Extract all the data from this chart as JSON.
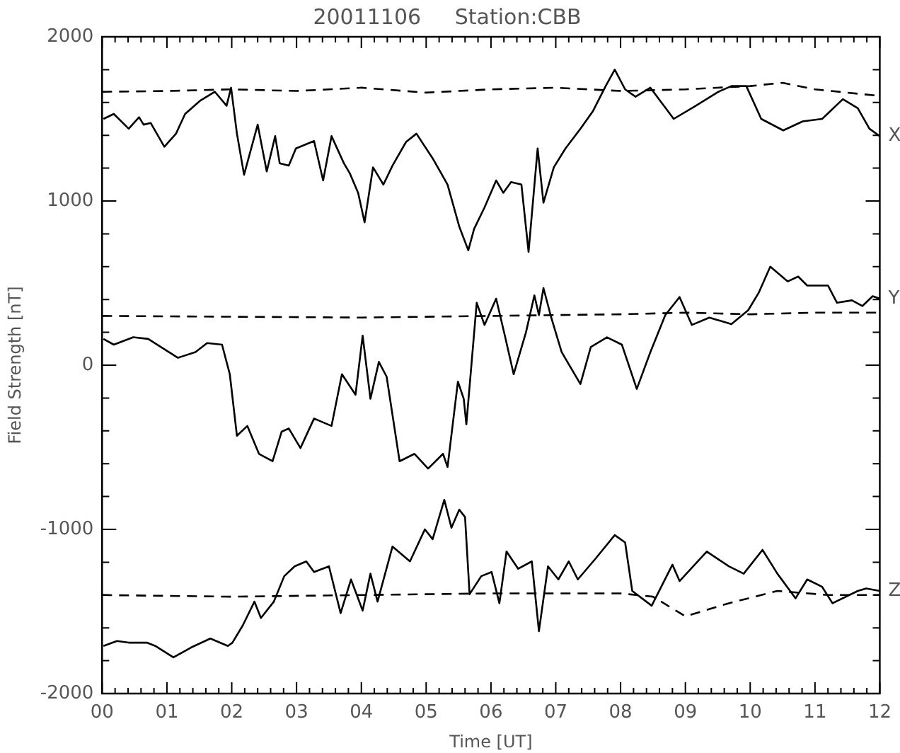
{
  "chart_data": {
    "type": "line",
    "title": "20011106     Station:CBB",
    "xlabel": "Time [UT]",
    "ylabel": "Field Strength [nT]",
    "xlim": [
      0,
      12
    ],
    "ylim": [
      -2000,
      2000
    ],
    "xticks": [
      {
        "value": 0,
        "label": "00"
      },
      {
        "value": 0.2,
        "label": null
      },
      {
        "value": 0.4,
        "label": null
      },
      {
        "value": 0.6,
        "label": null
      },
      {
        "value": 0.8,
        "label": null
      },
      {
        "value": 1,
        "label": "01"
      },
      {
        "value": 1.2,
        "label": null
      },
      {
        "value": 1.4,
        "label": null
      },
      {
        "value": 1.6,
        "label": null
      },
      {
        "value": 1.8,
        "label": null
      },
      {
        "value": 2,
        "label": "02"
      },
      {
        "value": 2.2,
        "label": null
      },
      {
        "value": 2.4,
        "label": null
      },
      {
        "value": 2.6,
        "label": null
      },
      {
        "value": 2.8,
        "label": null
      },
      {
        "value": 3,
        "label": "03"
      },
      {
        "value": 3.2,
        "label": null
      },
      {
        "value": 3.4,
        "label": null
      },
      {
        "value": 3.6,
        "label": null
      },
      {
        "value": 3.8,
        "label": null
      },
      {
        "value": 4,
        "label": "04"
      },
      {
        "value": 4.2,
        "label": null
      },
      {
        "value": 4.4,
        "label": null
      },
      {
        "value": 4.6,
        "label": null
      },
      {
        "value": 4.8,
        "label": null
      },
      {
        "value": 5,
        "label": "05"
      },
      {
        "value": 5.2,
        "label": null
      },
      {
        "value": 5.4,
        "label": null
      },
      {
        "value": 5.6,
        "label": null
      },
      {
        "value": 5.8,
        "label": null
      },
      {
        "value": 6,
        "label": "06"
      },
      {
        "value": 6.2,
        "label": null
      },
      {
        "value": 6.4,
        "label": null
      },
      {
        "value": 6.6,
        "label": null
      },
      {
        "value": 6.8,
        "label": null
      },
      {
        "value": 7,
        "label": "07"
      },
      {
        "value": 7.2,
        "label": null
      },
      {
        "value": 7.4,
        "label": null
      },
      {
        "value": 7.6,
        "label": null
      },
      {
        "value": 7.8,
        "label": null
      },
      {
        "value": 8,
        "label": "08"
      },
      {
        "value": 8.2,
        "label": null
      },
      {
        "value": 8.4,
        "label": null
      },
      {
        "value": 8.6,
        "label": null
      },
      {
        "value": 8.8,
        "label": null
      },
      {
        "value": 9,
        "label": "09"
      },
      {
        "value": 9.2,
        "label": null
      },
      {
        "value": 9.4,
        "label": null
      },
      {
        "value": 9.6,
        "label": null
      },
      {
        "value": 9.8,
        "label": null
      },
      {
        "value": 10,
        "label": "10"
      },
      {
        "value": 10.2,
        "label": null
      },
      {
        "value": 10.4,
        "label": null
      },
      {
        "value": 10.6,
        "label": null
      },
      {
        "value": 10.8,
        "label": null
      },
      {
        "value": 11,
        "label": "11"
      },
      {
        "value": 11.2,
        "label": null
      },
      {
        "value": 11.4,
        "label": null
      },
      {
        "value": 11.6,
        "label": null
      },
      {
        "value": 11.8,
        "label": null
      },
      {
        "value": 12,
        "label": "12"
      }
    ],
    "yticks": [
      -2000,
      {
        "value": -1800,
        "label": null
      },
      {
        "value": -1600,
        "label": null
      },
      {
        "value": -1400,
        "label": null
      },
      {
        "value": -1200,
        "label": null
      },
      -1000,
      {
        "value": -800,
        "label": null
      },
      {
        "value": -600,
        "label": null
      },
      {
        "value": -400,
        "label": null
      },
      {
        "value": -200,
        "label": null
      },
      0,
      {
        "value": 200,
        "label": null
      },
      {
        "value": 400,
        "label": null
      },
      {
        "value": 600,
        "label": null
      },
      {
        "value": 800,
        "label": null
      },
      1000,
      {
        "value": 1200,
        "label": null
      },
      {
        "value": 1400,
        "label": null
      },
      {
        "value": 1600,
        "label": null
      },
      {
        "value": 1800,
        "label": null
      },
      2000
    ],
    "grid": false,
    "legend": "right",
    "marker": "none",
    "series": [
      {
        "name": "X",
        "color": "#000000",
        "line_style": "solid",
        "x": [
          0.02,
          0.18,
          0.41,
          0.57,
          0.64,
          0.75,
          0.96,
          1.14,
          1.28,
          1.51,
          1.74,
          1.92,
          1.99,
          2.08,
          2.19,
          2.4,
          2.54,
          2.67,
          2.74,
          2.88,
          2.99,
          3.27,
          3.41,
          3.54,
          3.73,
          3.82,
          3.95,
          4.05,
          4.18,
          4.34,
          4.48,
          4.69,
          4.85,
          5.1,
          5.33,
          5.51,
          5.65,
          5.74,
          5.9,
          6.08,
          6.19,
          6.31,
          6.47,
          6.58,
          6.72,
          6.81,
          6.97,
          7.15,
          7.38,
          7.57,
          7.77,
          7.91,
          8.07,
          8.23,
          8.46,
          8.82,
          9.14,
          9.51,
          9.71,
          9.94,
          10.17,
          10.51,
          10.81,
          11.11,
          11.43,
          11.66,
          11.84,
          12
        ],
        "values": [
          1500,
          1530,
          1440,
          1510,
          1465,
          1475,
          1330,
          1410,
          1530,
          1610,
          1665,
          1580,
          1690,
          1410,
          1160,
          1465,
          1180,
          1395,
          1230,
          1215,
          1320,
          1365,
          1125,
          1395,
          1230,
          1170,
          1050,
          870,
          1205,
          1100,
          1215,
          1360,
          1410,
          1260,
          1100,
          845,
          700,
          830,
          960,
          1125,
          1050,
          1115,
          1100,
          690,
          1320,
          990,
          1205,
          1320,
          1440,
          1545,
          1700,
          1800,
          1680,
          1635,
          1690,
          1500,
          1575,
          1665,
          1700,
          1700,
          1500,
          1430,
          1485,
          1500,
          1620,
          1565,
          1440,
          1395
        ]
      },
      {
        "color": "#000000",
        "line_style": "dashed",
        "x": [
          0,
          1,
          2,
          3,
          4,
          5,
          6,
          7,
          8,
          9,
          10,
          10.5,
          11,
          12
        ],
        "values": [
          1665,
          1670,
          1680,
          1670,
          1690,
          1660,
          1680,
          1690,
          1670,
          1680,
          1700,
          1720,
          1680,
          1640
        ]
      },
      {
        "name": "Y",
        "color": "#000000",
        "line_style": "solid",
        "x": [
          0.02,
          0.18,
          0.48,
          0.71,
          1.17,
          1.44,
          1.62,
          1.85,
          1.97,
          2.08,
          2.24,
          2.42,
          2.63,
          2.77,
          2.88,
          3.06,
          3.27,
          3.54,
          3.7,
          3.91,
          4.02,
          4.14,
          4.27,
          4.39,
          4.59,
          4.82,
          5.03,
          5.26,
          5.33,
          5.49,
          5.58,
          5.62,
          5.78,
          5.9,
          6.08,
          6.22,
          6.35,
          6.54,
          6.67,
          6.74,
          6.81,
          6.93,
          7.09,
          7.38,
          7.54,
          7.79,
          8.02,
          8.25,
          8.46,
          8.69,
          8.91,
          9.1,
          9.37,
          9.71,
          9.97,
          10.13,
          10.31,
          10.58,
          10.74,
          10.88,
          11.2,
          11.34,
          11.57,
          11.73,
          11.89,
          12
        ],
        "values": [
          160,
          125,
          170,
          160,
          45,
          80,
          135,
          125,
          -55,
          -430,
          -370,
          -540,
          -585,
          -405,
          -385,
          -505,
          -325,
          -370,
          -55,
          -180,
          180,
          -205,
          20,
          -70,
          -585,
          -540,
          -630,
          -540,
          -620,
          -100,
          -205,
          -360,
          380,
          245,
          405,
          170,
          -55,
          200,
          425,
          305,
          470,
          290,
          80,
          -115,
          110,
          170,
          125,
          -145,
          80,
          305,
          415,
          245,
          290,
          250,
          335,
          440,
          600,
          510,
          540,
          485,
          485,
          380,
          395,
          360,
          420,
          405
        ]
      },
      {
        "color": "#000000",
        "line_style": "dashed",
        "x": [
          0,
          2,
          4,
          6,
          8,
          9,
          10,
          11,
          12
        ],
        "values": [
          300,
          295,
          290,
          300,
          310,
          320,
          310,
          320,
          320
        ]
      },
      {
        "name": "Z",
        "color": "#000000",
        "line_style": "solid",
        "x": [
          0.02,
          0.23,
          0.41,
          0.69,
          0.82,
          1.1,
          1.37,
          1.67,
          1.94,
          2.01,
          2.17,
          2.35,
          2.45,
          2.65,
          2.81,
          2.97,
          3.15,
          3.27,
          3.5,
          3.68,
          3.84,
          4.02,
          4.14,
          4.25,
          4.48,
          4.75,
          4.98,
          5.1,
          5.28,
          5.39,
          5.51,
          5.6,
          5.67,
          5.85,
          6.01,
          6.13,
          6.24,
          6.42,
          6.63,
          6.74,
          6.88,
          7.04,
          7.2,
          7.34,
          7.61,
          7.91,
          8.07,
          8.18,
          8.48,
          8.8,
          8.91,
          9.33,
          9.67,
          9.9,
          10.19,
          10.42,
          10.7,
          10.88,
          11.11,
          11.27,
          11.66,
          11.79,
          12
        ],
        "values": [
          -1710,
          -1680,
          -1690,
          -1690,
          -1710,
          -1780,
          -1720,
          -1665,
          -1710,
          -1690,
          -1585,
          -1440,
          -1540,
          -1440,
          -1285,
          -1225,
          -1195,
          -1260,
          -1225,
          -1510,
          -1305,
          -1495,
          -1270,
          -1440,
          -1105,
          -1195,
          -1000,
          -1060,
          -820,
          -990,
          -880,
          -925,
          -1395,
          -1285,
          -1260,
          -1450,
          -1135,
          -1240,
          -1195,
          -1620,
          -1225,
          -1305,
          -1195,
          -1305,
          -1180,
          -1035,
          -1080,
          -1375,
          -1465,
          -1215,
          -1315,
          -1135,
          -1225,
          -1270,
          -1125,
          -1270,
          -1420,
          -1305,
          -1350,
          -1450,
          -1375,
          -1360,
          -1375
        ]
      },
      {
        "color": "#000000",
        "line_style": "dashed",
        "x": [
          0,
          2,
          4,
          6,
          8,
          8.5,
          9,
          9.67,
          10.42,
          11.2,
          12
        ],
        "values": [
          -1400,
          -1410,
          -1400,
          -1390,
          -1390,
          -1410,
          -1530,
          -1450,
          -1375,
          -1400,
          -1400
        ]
      }
    ]
  }
}
